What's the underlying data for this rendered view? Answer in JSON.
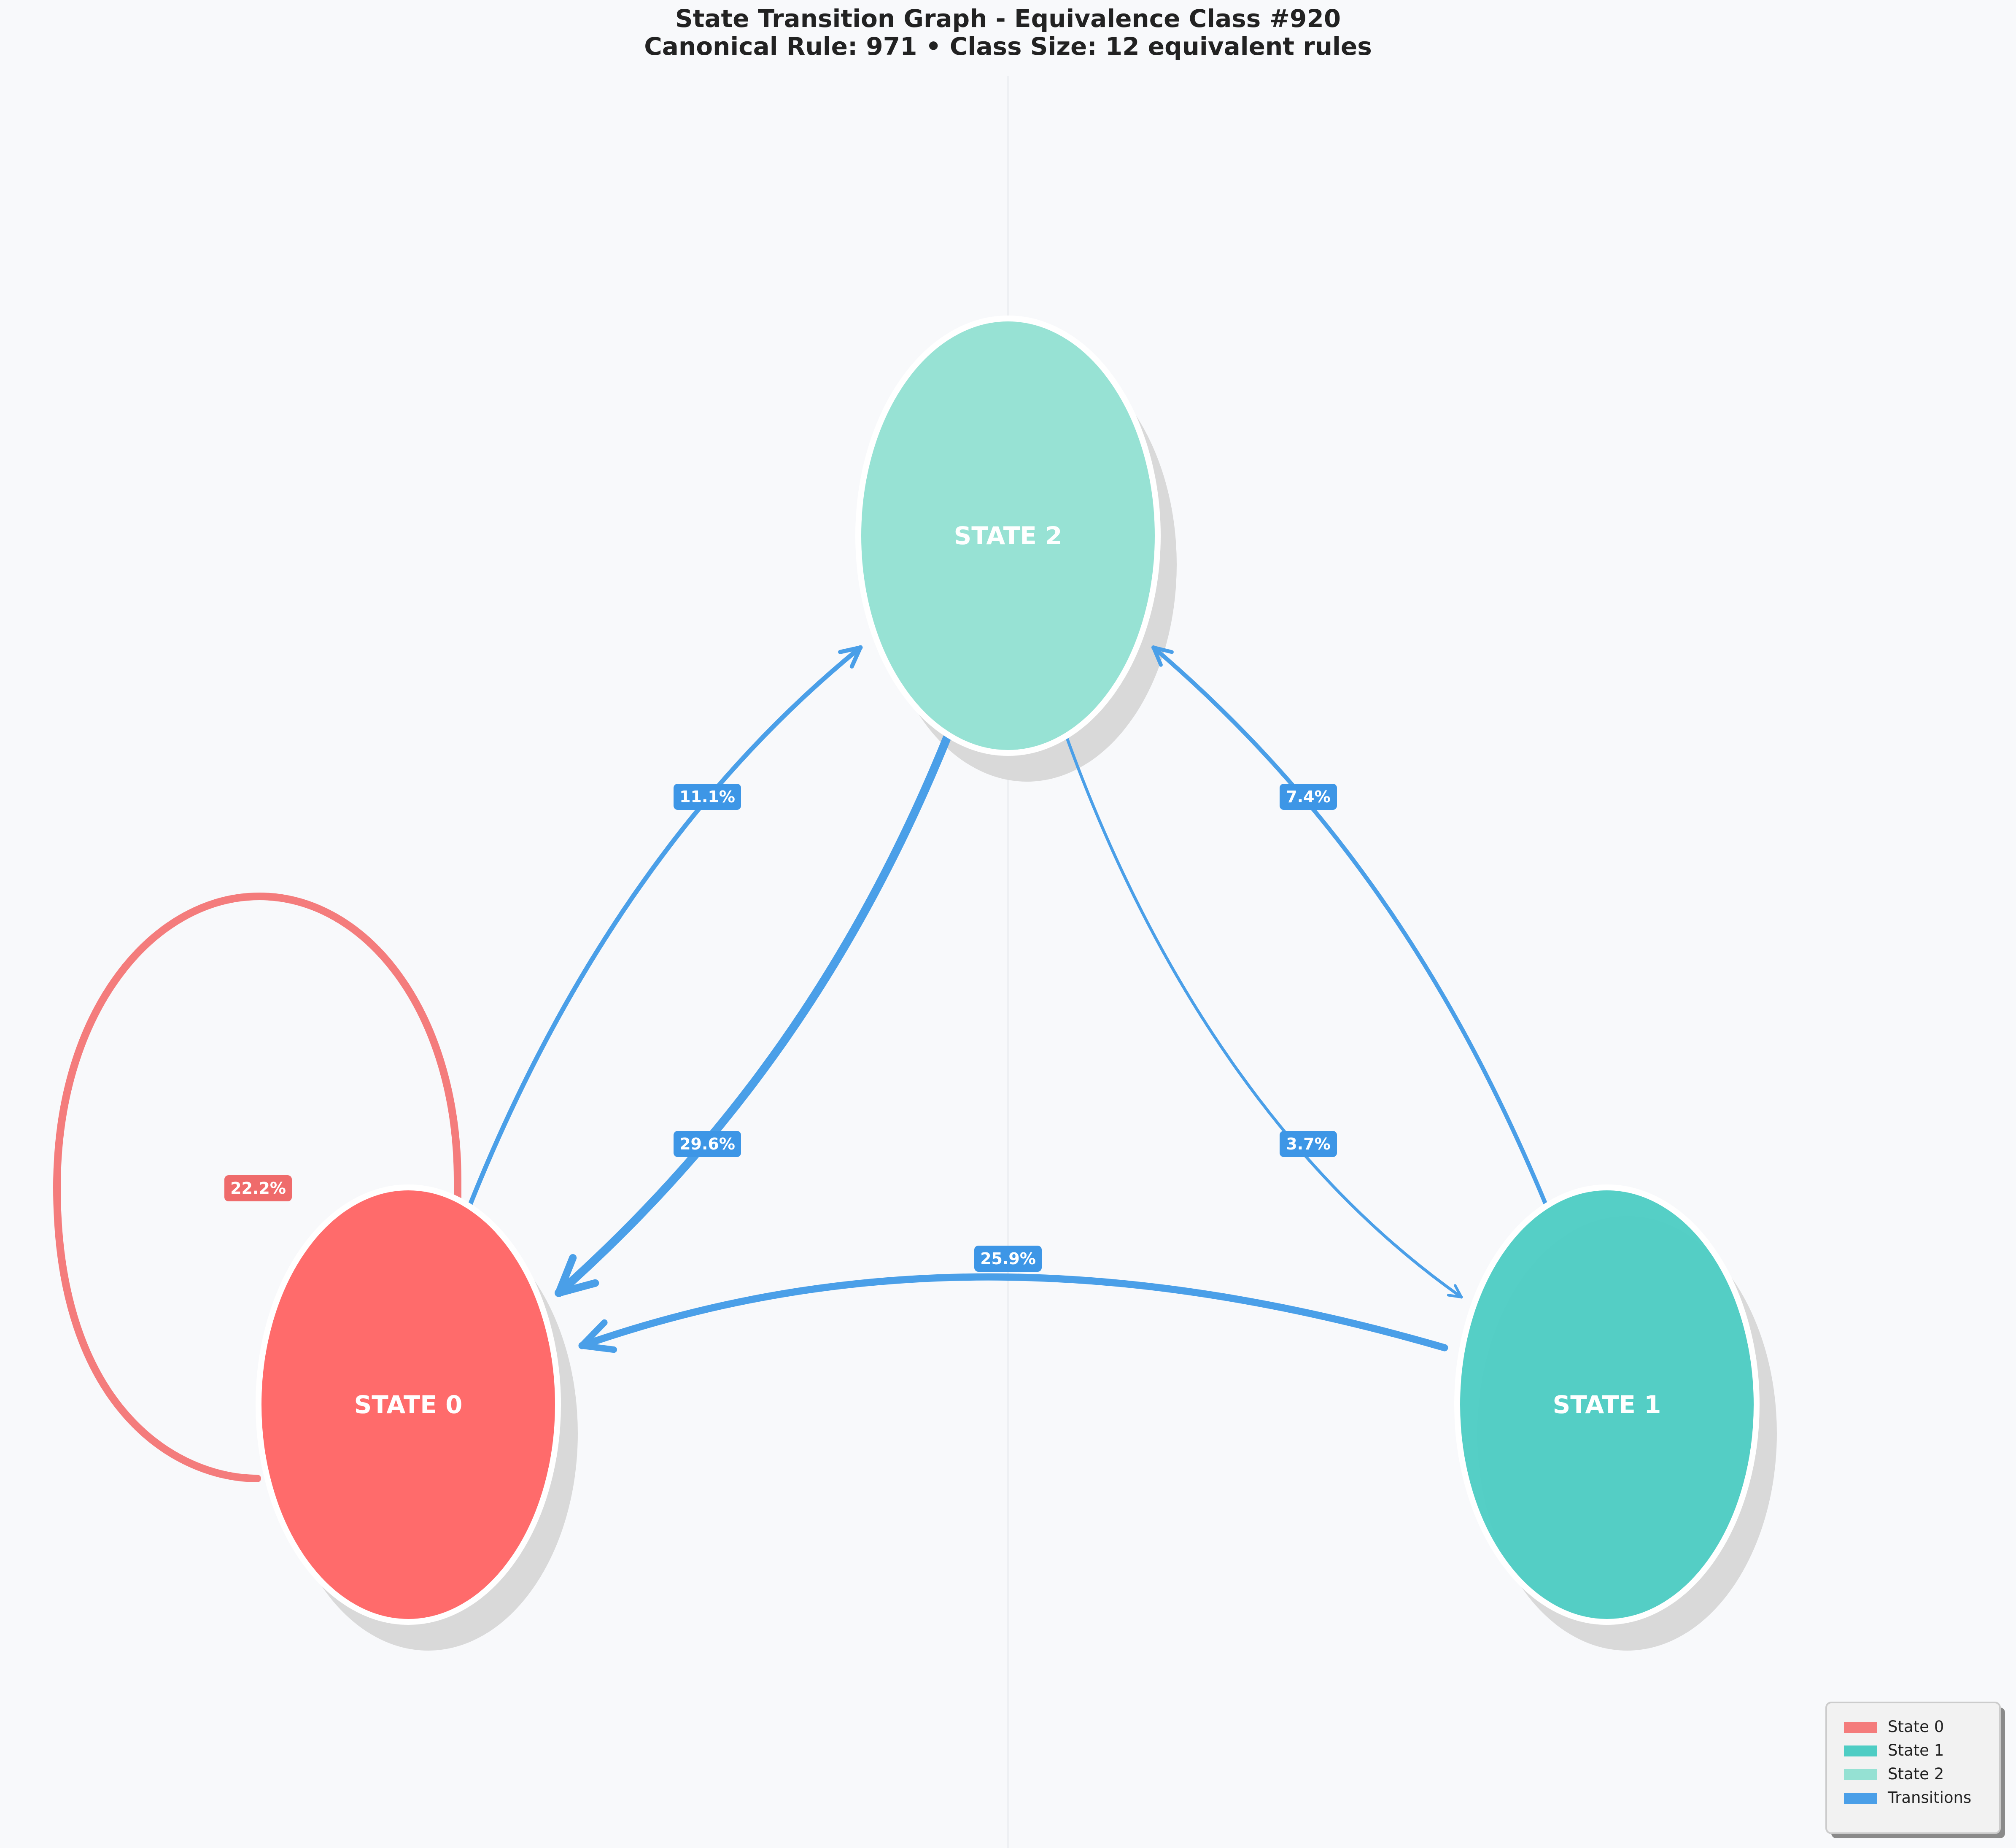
{
  "title": {
    "line1": "State Transition Graph - Equivalence Class #920",
    "line2": "Canonical Rule: 971 • Class Size: 12 equivalent rules"
  },
  "nodes": [
    {
      "id": "state-0",
      "label": "STATE 0",
      "color": "#ff6b6b"
    },
    {
      "id": "state-1",
      "label": "STATE 1",
      "color": "#4ecdc4"
    },
    {
      "id": "state-2",
      "label": "STATE 2",
      "color": "#95e1d3"
    }
  ],
  "edges": [
    {
      "from": "STATE 0",
      "to": "STATE 0",
      "label": "22.2%",
      "probability": 22.2,
      "color": "#f47c7c"
    },
    {
      "from": "STATE 0",
      "to": "STATE 2",
      "label": "11.1%",
      "probability": 11.1,
      "color": "#4a9fe8"
    },
    {
      "from": "STATE 2",
      "to": "STATE 0",
      "label": "29.6%",
      "probability": 29.6,
      "color": "#4a9fe8"
    },
    {
      "from": "STATE 1",
      "to": "STATE 2",
      "label": "7.4%",
      "probability": 7.4,
      "color": "#4a9fe8"
    },
    {
      "from": "STATE 2",
      "to": "STATE 1",
      "label": "3.7%",
      "probability": 3.7,
      "color": "#4a9fe8"
    },
    {
      "from": "STATE 1",
      "to": "STATE 0",
      "label": "25.9%",
      "probability": 25.9,
      "color": "#4a9fe8"
    }
  ],
  "legend": [
    {
      "label": "State 0",
      "color": "#f47c7c"
    },
    {
      "label": "State 1",
      "color": "#4ecdc4"
    },
    {
      "label": "State 2",
      "color": "#95e1d3"
    },
    {
      "label": "Transitions",
      "color": "#4a9fe8"
    }
  ],
  "colors": {
    "background": "#f8f9fb",
    "edge_label_bg": "#3d96e6",
    "self_loop_label_bg": "#ef6b6b",
    "shadow": "#d9d9d9"
  }
}
